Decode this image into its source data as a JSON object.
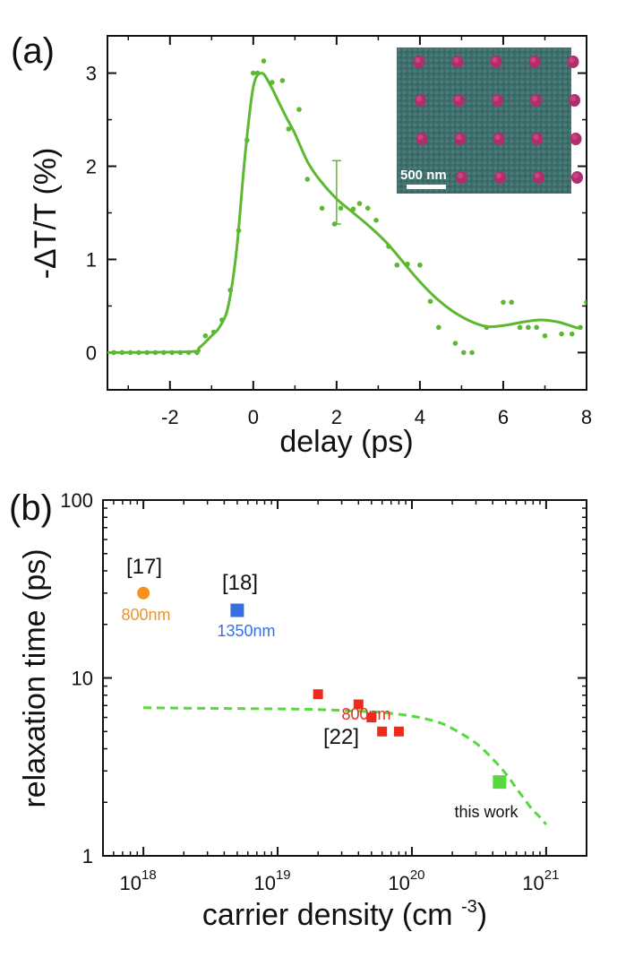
{
  "chart_data": [
    {
      "type": "line",
      "panel_label": "(a)",
      "xlabel": "delay (ps)",
      "ylabel": "-ΔT/T (%)",
      "xlim": [
        -3.5,
        8
      ],
      "ylim": [
        -0.4,
        3.4
      ],
      "xticks": [
        -2,
        0,
        2,
        4,
        6,
        8
      ],
      "yticks": [
        0,
        1,
        2,
        3
      ],
      "grid": false,
      "series": [
        {
          "kind": "scatter",
          "color": "#5cb82e",
          "x": [
            -3.35,
            -3.15,
            -2.95,
            -2.75,
            -2.55,
            -2.35,
            -2.15,
            -1.95,
            -1.75,
            -1.55,
            -1.35,
            -1.15,
            -0.95,
            -0.75,
            -0.55,
            -0.35,
            -0.15,
            0.0,
            0.1,
            0.25,
            0.45,
            0.7,
            0.85,
            1.1,
            1.3,
            1.65,
            1.95,
            2.1,
            2.4,
            2.55,
            2.75,
            2.95,
            3.25,
            3.45,
            3.7,
            4.0,
            4.25,
            4.45,
            4.85,
            5.05,
            5.25,
            5.6,
            6.0,
            6.2,
            6.4,
            6.6,
            6.8,
            7.0,
            7.4,
            7.65,
            7.85,
            8.0
          ],
          "y": [
            0,
            0,
            0,
            0,
            0,
            0,
            0,
            0,
            0,
            0,
            0,
            0.18,
            0.22,
            0.35,
            0.67,
            1.31,
            2.28,
            3.0,
            3.0,
            3.13,
            2.9,
            2.92,
            2.4,
            2.61,
            1.86,
            1.55,
            1.38,
            1.55,
            1.54,
            1.6,
            1.55,
            1.42,
            1.14,
            0.94,
            0.95,
            0.94,
            0.55,
            0.27,
            0.1,
            0.0,
            0.0,
            0.27,
            0.54,
            0.54,
            0.27,
            0.27,
            0.27,
            0.18,
            0.2,
            0.2,
            0.27,
            0.54
          ]
        },
        {
          "kind": "fit",
          "color": "#5cb82e",
          "x": [
            -3.5,
            -1.5,
            -1.3,
            -1.0,
            -0.8,
            -0.6,
            -0.4,
            -0.2,
            0.0,
            0.2,
            0.4,
            0.6,
            0.8,
            1.0,
            1.3,
            1.6,
            2.0,
            2.4,
            2.8,
            3.2,
            3.6,
            4.0,
            4.4,
            4.8,
            5.2,
            5.6,
            6.0,
            6.5,
            6.9,
            7.3,
            7.6,
            7.8
          ],
          "y": [
            0,
            0.01,
            0.05,
            0.18,
            0.28,
            0.5,
            1.1,
            2.1,
            2.85,
            3.0,
            2.88,
            2.7,
            2.52,
            2.35,
            2.05,
            1.85,
            1.65,
            1.5,
            1.35,
            1.18,
            0.97,
            0.76,
            0.58,
            0.44,
            0.34,
            0.28,
            0.29,
            0.33,
            0.35,
            0.33,
            0.29,
            0.26
          ]
        }
      ],
      "error_bar": {
        "x": 2.0,
        "y": 1.72,
        "low": 1.38,
        "high": 2.06
      },
      "inset": {
        "scale_bar_label": "500 nm"
      }
    },
    {
      "type": "scatter",
      "panel_label": "(b)",
      "xlabel": "carrier density (cm⁻³)",
      "ylabel": "relaxation time (ps)",
      "xscale": "log",
      "yscale": "log",
      "xlim": [
        5e+17,
        2e+21
      ],
      "ylim": [
        1,
        100
      ],
      "xtick_labels": [
        {
          "base": "10",
          "exp": "18"
        },
        {
          "base": "10",
          "exp": "19"
        },
        {
          "base": "10",
          "exp": "20"
        },
        {
          "base": "10",
          "exp": "21"
        }
      ],
      "ytick_labels": [
        "1",
        "10",
        "100"
      ],
      "grid": false,
      "points": [
        {
          "x": 1e+18,
          "y": 30,
          "marker": "circle",
          "color": "#f5921e"
        },
        {
          "x": 5e+18,
          "y": 24,
          "marker": "square",
          "color": "#3a6fe0"
        },
        {
          "x": 2e+19,
          "y": 8.1,
          "marker": "square",
          "color": "#ee2b1b"
        },
        {
          "x": 4e+19,
          "y": 7.1,
          "marker": "square",
          "color": "#ee2b1b"
        },
        {
          "x": 5e+19,
          "y": 6.0,
          "marker": "square",
          "color": "#ee2b1b"
        },
        {
          "x": 6e+19,
          "y": 5.0,
          "marker": "square",
          "color": "#ee2b1b"
        },
        {
          "x": 8e+19,
          "y": 5.0,
          "marker": "square",
          "color": "#ee2b1b"
        },
        {
          "x": 4.5e+20,
          "y": 2.6,
          "marker": "square",
          "color": "#55d93c"
        }
      ],
      "fit": {
        "style": "dashed",
        "color": "#55d93c",
        "x": [
          1e+18,
          3e+18,
          1e+19,
          2e+19,
          4e+19,
          6e+19,
          1e+20,
          1.5e+20,
          2e+20,
          3e+20,
          4e+20,
          5e+20,
          6e+20,
          7e+20,
          8e+20,
          9e+20,
          1e+21
        ],
        "y": [
          6.8,
          6.75,
          6.7,
          6.65,
          6.5,
          6.4,
          6.1,
          5.7,
          5.2,
          4.3,
          3.5,
          2.9,
          2.4,
          2.05,
          1.8,
          1.65,
          1.5
        ]
      },
      "annotations": [
        {
          "id": "ref17",
          "text": "[17]",
          "color": "#111111"
        },
        {
          "id": "ref17-wl",
          "text": "800nm",
          "color": "#f5921e"
        },
        {
          "id": "ref18",
          "text": "[18]",
          "color": "#111111"
        },
        {
          "id": "ref18-wl",
          "text": "1350nm",
          "color": "#3a6fe0"
        },
        {
          "id": "ref22-wl",
          "text": "800nm",
          "color": "#ee2b1b"
        },
        {
          "id": "ref22",
          "text": "[22]",
          "color": "#111111"
        },
        {
          "id": "this-work",
          "text": "this work",
          "color": "#111111"
        }
      ]
    }
  ]
}
